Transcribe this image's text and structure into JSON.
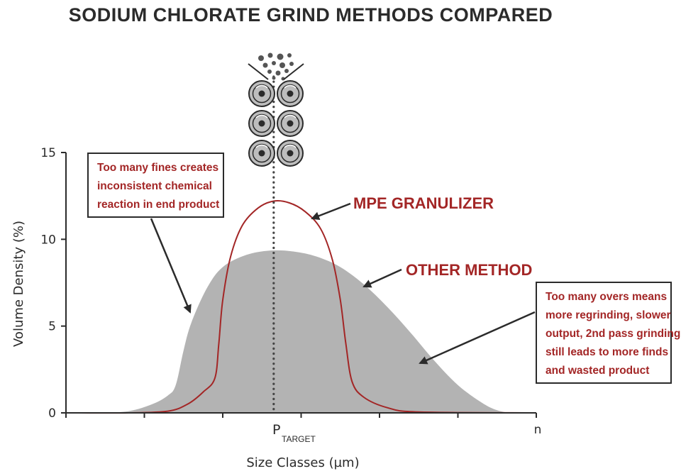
{
  "chart_data": {
    "type": "area",
    "title": "SODIUM CHLORATE GRIND METHODS COMPARED",
    "xlabel": "Size Classes (µm)",
    "ylabel": "Volume Density (%)",
    "ylim": [
      0,
      15
    ],
    "yticks": [
      0,
      5,
      10,
      15
    ],
    "xlim": [
      0,
      6
    ],
    "x_tick_labels": {
      "target": "P",
      "target_sub": "TARGET",
      "end": "n"
    },
    "series": [
      {
        "name": "OTHER METHOD",
        "style": "filled-area",
        "color": "#b3b3b3",
        "points": [
          [
            0,
            0
          ],
          [
            0.4,
            0
          ],
          [
            0.8,
            0.1
          ],
          [
            1.1,
            0.5
          ],
          [
            1.3,
            1.0
          ],
          [
            1.4,
            1.6
          ],
          [
            1.5,
            3.6
          ],
          [
            1.6,
            5.2
          ],
          [
            1.8,
            7.2
          ],
          [
            2.0,
            8.4
          ],
          [
            2.3,
            9.1
          ],
          [
            2.6,
            9.35
          ],
          [
            2.9,
            9.3
          ],
          [
            3.2,
            9.0
          ],
          [
            3.5,
            8.4
          ],
          [
            3.8,
            7.4
          ],
          [
            4.1,
            6.1
          ],
          [
            4.4,
            4.6
          ],
          [
            4.7,
            3.0
          ],
          [
            5.0,
            1.6
          ],
          [
            5.3,
            0.6
          ],
          [
            5.5,
            0.15
          ],
          [
            5.7,
            0
          ],
          [
            6,
            0
          ]
        ]
      },
      {
        "name": "MPE GRANULIZER",
        "style": "line",
        "color": "#a32626",
        "points": [
          [
            0,
            0
          ],
          [
            0.8,
            0
          ],
          [
            1.3,
            0.1
          ],
          [
            1.55,
            0.5
          ],
          [
            1.75,
            1.2
          ],
          [
            1.9,
            2.0
          ],
          [
            1.95,
            4.0
          ],
          [
            2.0,
            6.5
          ],
          [
            2.1,
            9.0
          ],
          [
            2.25,
            10.8
          ],
          [
            2.45,
            11.8
          ],
          [
            2.65,
            12.2
          ],
          [
            2.85,
            12.1
          ],
          [
            3.05,
            11.6
          ],
          [
            3.25,
            10.6
          ],
          [
            3.4,
            8.8
          ],
          [
            3.5,
            6.5
          ],
          [
            3.57,
            4.0
          ],
          [
            3.65,
            1.8
          ],
          [
            3.8,
            0.9
          ],
          [
            4.1,
            0.3
          ],
          [
            4.5,
            0.05
          ],
          [
            6,
            0
          ]
        ]
      }
    ],
    "target_x": 2.65,
    "annotations": {
      "fines_note": [
        "Too many fines creates",
        "inconsistent chemical",
        "reaction in end product"
      ],
      "overs_note": [
        "Too many overs means",
        "more regrinding, slower",
        "output, 2nd pass grinding",
        "still leads to more finds",
        "and wasted product"
      ]
    },
    "colors": {
      "accent": "#a32626",
      "area": "#b3b3b3",
      "text": "#2b2b2b",
      "roller": "#bdbdbd"
    }
  },
  "icons": {
    "grinder": "roller-mill-icon"
  }
}
